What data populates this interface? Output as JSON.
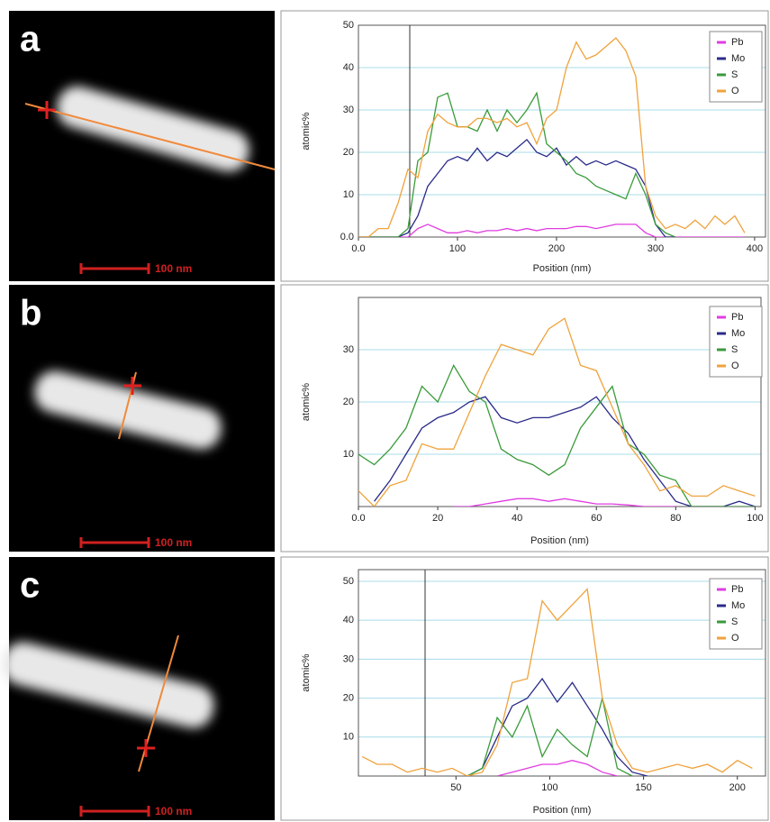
{
  "chart_data": [
    {
      "type": "line",
      "panel_label": "a",
      "scale_bar": "100 nm",
      "ylabel": "atomic%",
      "xlabel": "Position (nm)",
      "xlim": [
        0,
        411
      ],
      "ylim": [
        0,
        50
      ],
      "xticks": [
        {
          "value": 0,
          "label": "0.0"
        },
        100,
        200,
        300,
        400
      ],
      "yticks": [
        {
          "value": 0,
          "label": "0.0"
        },
        10,
        20,
        30,
        40,
        50
      ],
      "grid": true,
      "x": [
        0,
        10,
        20,
        30,
        40,
        50,
        60,
        70,
        80,
        90,
        100,
        110,
        120,
        130,
        140,
        150,
        160,
        170,
        180,
        190,
        200,
        210,
        220,
        230,
        240,
        250,
        260,
        270,
        280,
        290,
        300,
        310,
        320,
        330,
        340,
        350,
        360,
        370,
        380,
        390
      ],
      "series": [
        {
          "name": "Pb",
          "color": "#e03ce0",
          "values": [
            0,
            0,
            0,
            0,
            0,
            0,
            2,
            3,
            2,
            1,
            1,
            1.5,
            1,
            1.5,
            1.5,
            2,
            1.5,
            2,
            1.5,
            2,
            2,
            2,
            2.5,
            2.5,
            2,
            2.5,
            3,
            3,
            3,
            1,
            0,
            0,
            0,
            0,
            0,
            0,
            0,
            0,
            0,
            0
          ]
        },
        {
          "name": "Mo",
          "color": "#2a2a8a",
          "values": [
            0,
            0,
            0,
            0,
            0,
            1,
            5,
            12,
            15,
            18,
            19,
            18,
            21,
            18,
            20,
            19,
            21,
            23,
            20,
            19,
            21,
            17,
            19,
            17,
            18,
            17,
            18,
            17,
            16,
            12,
            3,
            0,
            0,
            null,
            null,
            null,
            null,
            null,
            null,
            null
          ]
        },
        {
          "name": "S",
          "color": "#3a9a3a",
          "values": [
            0,
            0,
            0,
            0,
            0,
            2,
            18,
            20,
            33,
            34,
            26,
            26,
            25,
            30,
            25,
            30,
            27,
            30,
            34,
            22,
            20,
            18,
            15,
            14,
            12,
            11,
            10,
            9,
            15,
            10,
            3,
            1,
            0,
            null,
            null,
            null,
            null,
            null,
            null,
            null
          ]
        },
        {
          "name": "O",
          "color": "#f0a23c",
          "values": [
            0,
            0,
            2,
            2,
            8,
            16,
            14,
            25,
            29,
            27,
            26,
            26,
            28,
            28,
            27,
            28,
            26,
            27,
            22,
            28,
            30,
            40,
            46,
            42,
            43,
            45,
            47,
            44,
            38,
            12,
            5,
            2,
            3,
            2,
            4,
            2,
            5,
            3,
            5,
            1
          ]
        }
      ]
    },
    {
      "type": "line",
      "panel_label": "b",
      "scale_bar": "100 nm",
      "ylabel": "atomic%",
      "xlabel": "Position (nm)",
      "xlim": [
        0,
        101.5
      ],
      "ylim": [
        0,
        40
      ],
      "xticks": [
        {
          "value": 0,
          "label": "0.0"
        },
        20,
        40,
        60,
        80,
        100
      ],
      "yticks": [
        10,
        20,
        30
      ],
      "grid": true,
      "x": [
        0,
        4,
        8,
        12,
        16,
        20,
        24,
        28,
        32,
        36,
        40,
        44,
        48,
        52,
        56,
        60,
        64,
        68,
        72,
        76,
        80,
        84,
        88,
        92,
        96,
        100
      ],
      "series": [
        {
          "name": "Pb",
          "color": "#e03ce0",
          "values": [
            null,
            null,
            null,
            null,
            null,
            null,
            0,
            0,
            0.5,
            1,
            1.5,
            1.5,
            1,
            1.5,
            1,
            0.5,
            0.5,
            0.3,
            0,
            0,
            0,
            null,
            null,
            null,
            null,
            null
          ]
        },
        {
          "name": "Mo",
          "color": "#2a2a8a",
          "values": [
            null,
            1,
            5,
            10,
            15,
            17,
            18,
            20,
            21,
            17,
            16,
            17,
            17,
            18,
            19,
            21,
            17,
            14,
            9,
            5,
            1,
            0,
            0,
            0,
            1,
            0
          ]
        },
        {
          "name": "S",
          "color": "#3a9a3a",
          "values": [
            10,
            8,
            11,
            15,
            23,
            20,
            27,
            22,
            20,
            11,
            9,
            8,
            6,
            8,
            15,
            19,
            23,
            12,
            10,
            6,
            5,
            0,
            0,
            0,
            0,
            0
          ]
        },
        {
          "name": "O",
          "color": "#f0a23c",
          "values": [
            3,
            0,
            4,
            5,
            12,
            11,
            11,
            18,
            25,
            31,
            30,
            29,
            34,
            36,
            27,
            26,
            19,
            12,
            8,
            3,
            4,
            2,
            2,
            4,
            3,
            2
          ]
        }
      ]
    },
    {
      "type": "line",
      "panel_label": "c",
      "scale_bar": "100 nm",
      "ylabel": "atomic%",
      "xlabel": "Position (nm)",
      "xlim": [
        -2,
        215
      ],
      "ylim": [
        0,
        53
      ],
      "xticks": [
        50,
        100,
        150,
        200
      ],
      "yticks": [
        10,
        20,
        30,
        40,
        50
      ],
      "grid": true,
      "x": [
        0,
        8,
        16,
        24,
        32,
        40,
        48,
        56,
        64,
        72,
        80,
        88,
        96,
        104,
        112,
        120,
        128,
        136,
        144,
        152,
        160,
        168,
        176,
        184,
        192,
        200,
        208
      ],
      "series": [
        {
          "name": "Pb",
          "color": "#e03ce0",
          "values": [
            null,
            null,
            null,
            null,
            null,
            null,
            null,
            null,
            null,
            0,
            1,
            2,
            3,
            3,
            4,
            3,
            1,
            0,
            null,
            null,
            null,
            null,
            null,
            null,
            null,
            null,
            null
          ]
        },
        {
          "name": "Mo",
          "color": "#2a2a8a",
          "values": [
            null,
            null,
            null,
            null,
            null,
            null,
            null,
            0,
            2,
            10,
            18,
            20,
            25,
            19,
            24,
            18,
            12,
            5,
            1,
            0,
            null,
            null,
            null,
            null,
            null,
            null,
            null
          ]
        },
        {
          "name": "S",
          "color": "#3a9a3a",
          "values": [
            null,
            null,
            null,
            null,
            null,
            null,
            null,
            0,
            2,
            15,
            10,
            18,
            5,
            12,
            8,
            5,
            20,
            2,
            0,
            null,
            null,
            null,
            null,
            null,
            null,
            null,
            null
          ]
        },
        {
          "name": "O",
          "color": "#f0a23c",
          "values": [
            5,
            3,
            3,
            1,
            2,
            1,
            2,
            0,
            1,
            8,
            24,
            25,
            45,
            40,
            44,
            48,
            20,
            8,
            2,
            1,
            2,
            3,
            2,
            3,
            1,
            4,
            2
          ]
        }
      ]
    }
  ]
}
